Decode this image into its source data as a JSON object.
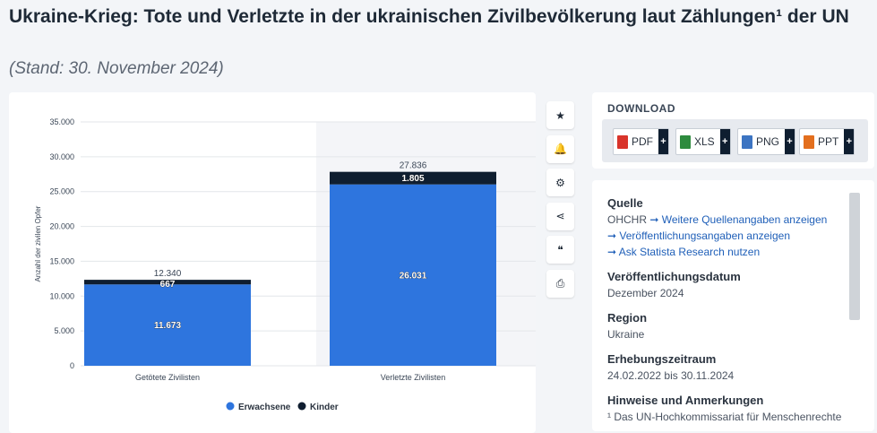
{
  "page": {
    "title": "Ukraine-Krieg: Tote und Verletzte in der ukrainischen Zivilbevölkerung laut Zählungen¹ der UN",
    "subtitle": "(Stand: 30. November 2024)"
  },
  "toolbar": {
    "icons": [
      "star-icon",
      "bell-icon",
      "gear-icon",
      "share-icon",
      "quote-icon",
      "print-icon"
    ],
    "glyphs": [
      "★",
      "🔔",
      "⚙",
      "⋖",
      "❝",
      "⎙"
    ]
  },
  "download": {
    "title": "DOWNLOAD",
    "buttons": [
      {
        "label": "PDF",
        "color": "#d9342b"
      },
      {
        "label": "XLS",
        "color": "#2e8b3e"
      },
      {
        "label": "PNG",
        "color": "#3c74c2"
      },
      {
        "label": "PPT",
        "color": "#e36f1e"
      }
    ],
    "plus": "+"
  },
  "info": {
    "source_heading": "Quelle",
    "source_name": "OHCHR",
    "links": [
      "Weitere Quellenangaben anzeigen",
      "Veröffentlichungsangaben anzeigen",
      "Ask Statista Research nutzen"
    ],
    "pub_date_heading": "Veröffentlichungsdatum",
    "pub_date": "Dezember 2024",
    "region_heading": "Region",
    "region": "Ukraine",
    "period_heading": "Erhebungszeitraum",
    "period": "24.02.2022 bis 30.11.2024",
    "notes_heading": "Hinweise und Anmerkungen",
    "notes": "¹ Das UN-Hochkommissariat für Menschenrechte"
  },
  "chart_data": {
    "type": "bar",
    "stacked": true,
    "categories": [
      "Getötete Zivilisten",
      "Verletzte Zivilisten"
    ],
    "series": [
      {
        "name": "Erwachsene",
        "values": [
          11673,
          26031
        ],
        "color": "#2e75de"
      },
      {
        "name": "Kinder",
        "values": [
          667,
          1805
        ],
        "color": "#0f1e30"
      }
    ],
    "totals": [
      12340,
      27836
    ],
    "value_labels": {
      "Erwachsene": [
        "11.673",
        "26.031"
      ],
      "Kinder": [
        "667",
        "1.805"
      ],
      "totals": [
        "12.340",
        "27.836"
      ]
    },
    "ylabel": "Anzahl der zivilen Opfer",
    "ylim": [
      0,
      35000
    ],
    "yticks": [
      0,
      5000,
      10000,
      15000,
      20000,
      25000,
      30000,
      35000
    ],
    "ytick_labels": [
      "0",
      "5.000",
      "10.000",
      "15.000",
      "20.000",
      "25.000",
      "30.000",
      "35.000"
    ],
    "grid": true,
    "legend": "bottom",
    "highlight_category": 1
  }
}
